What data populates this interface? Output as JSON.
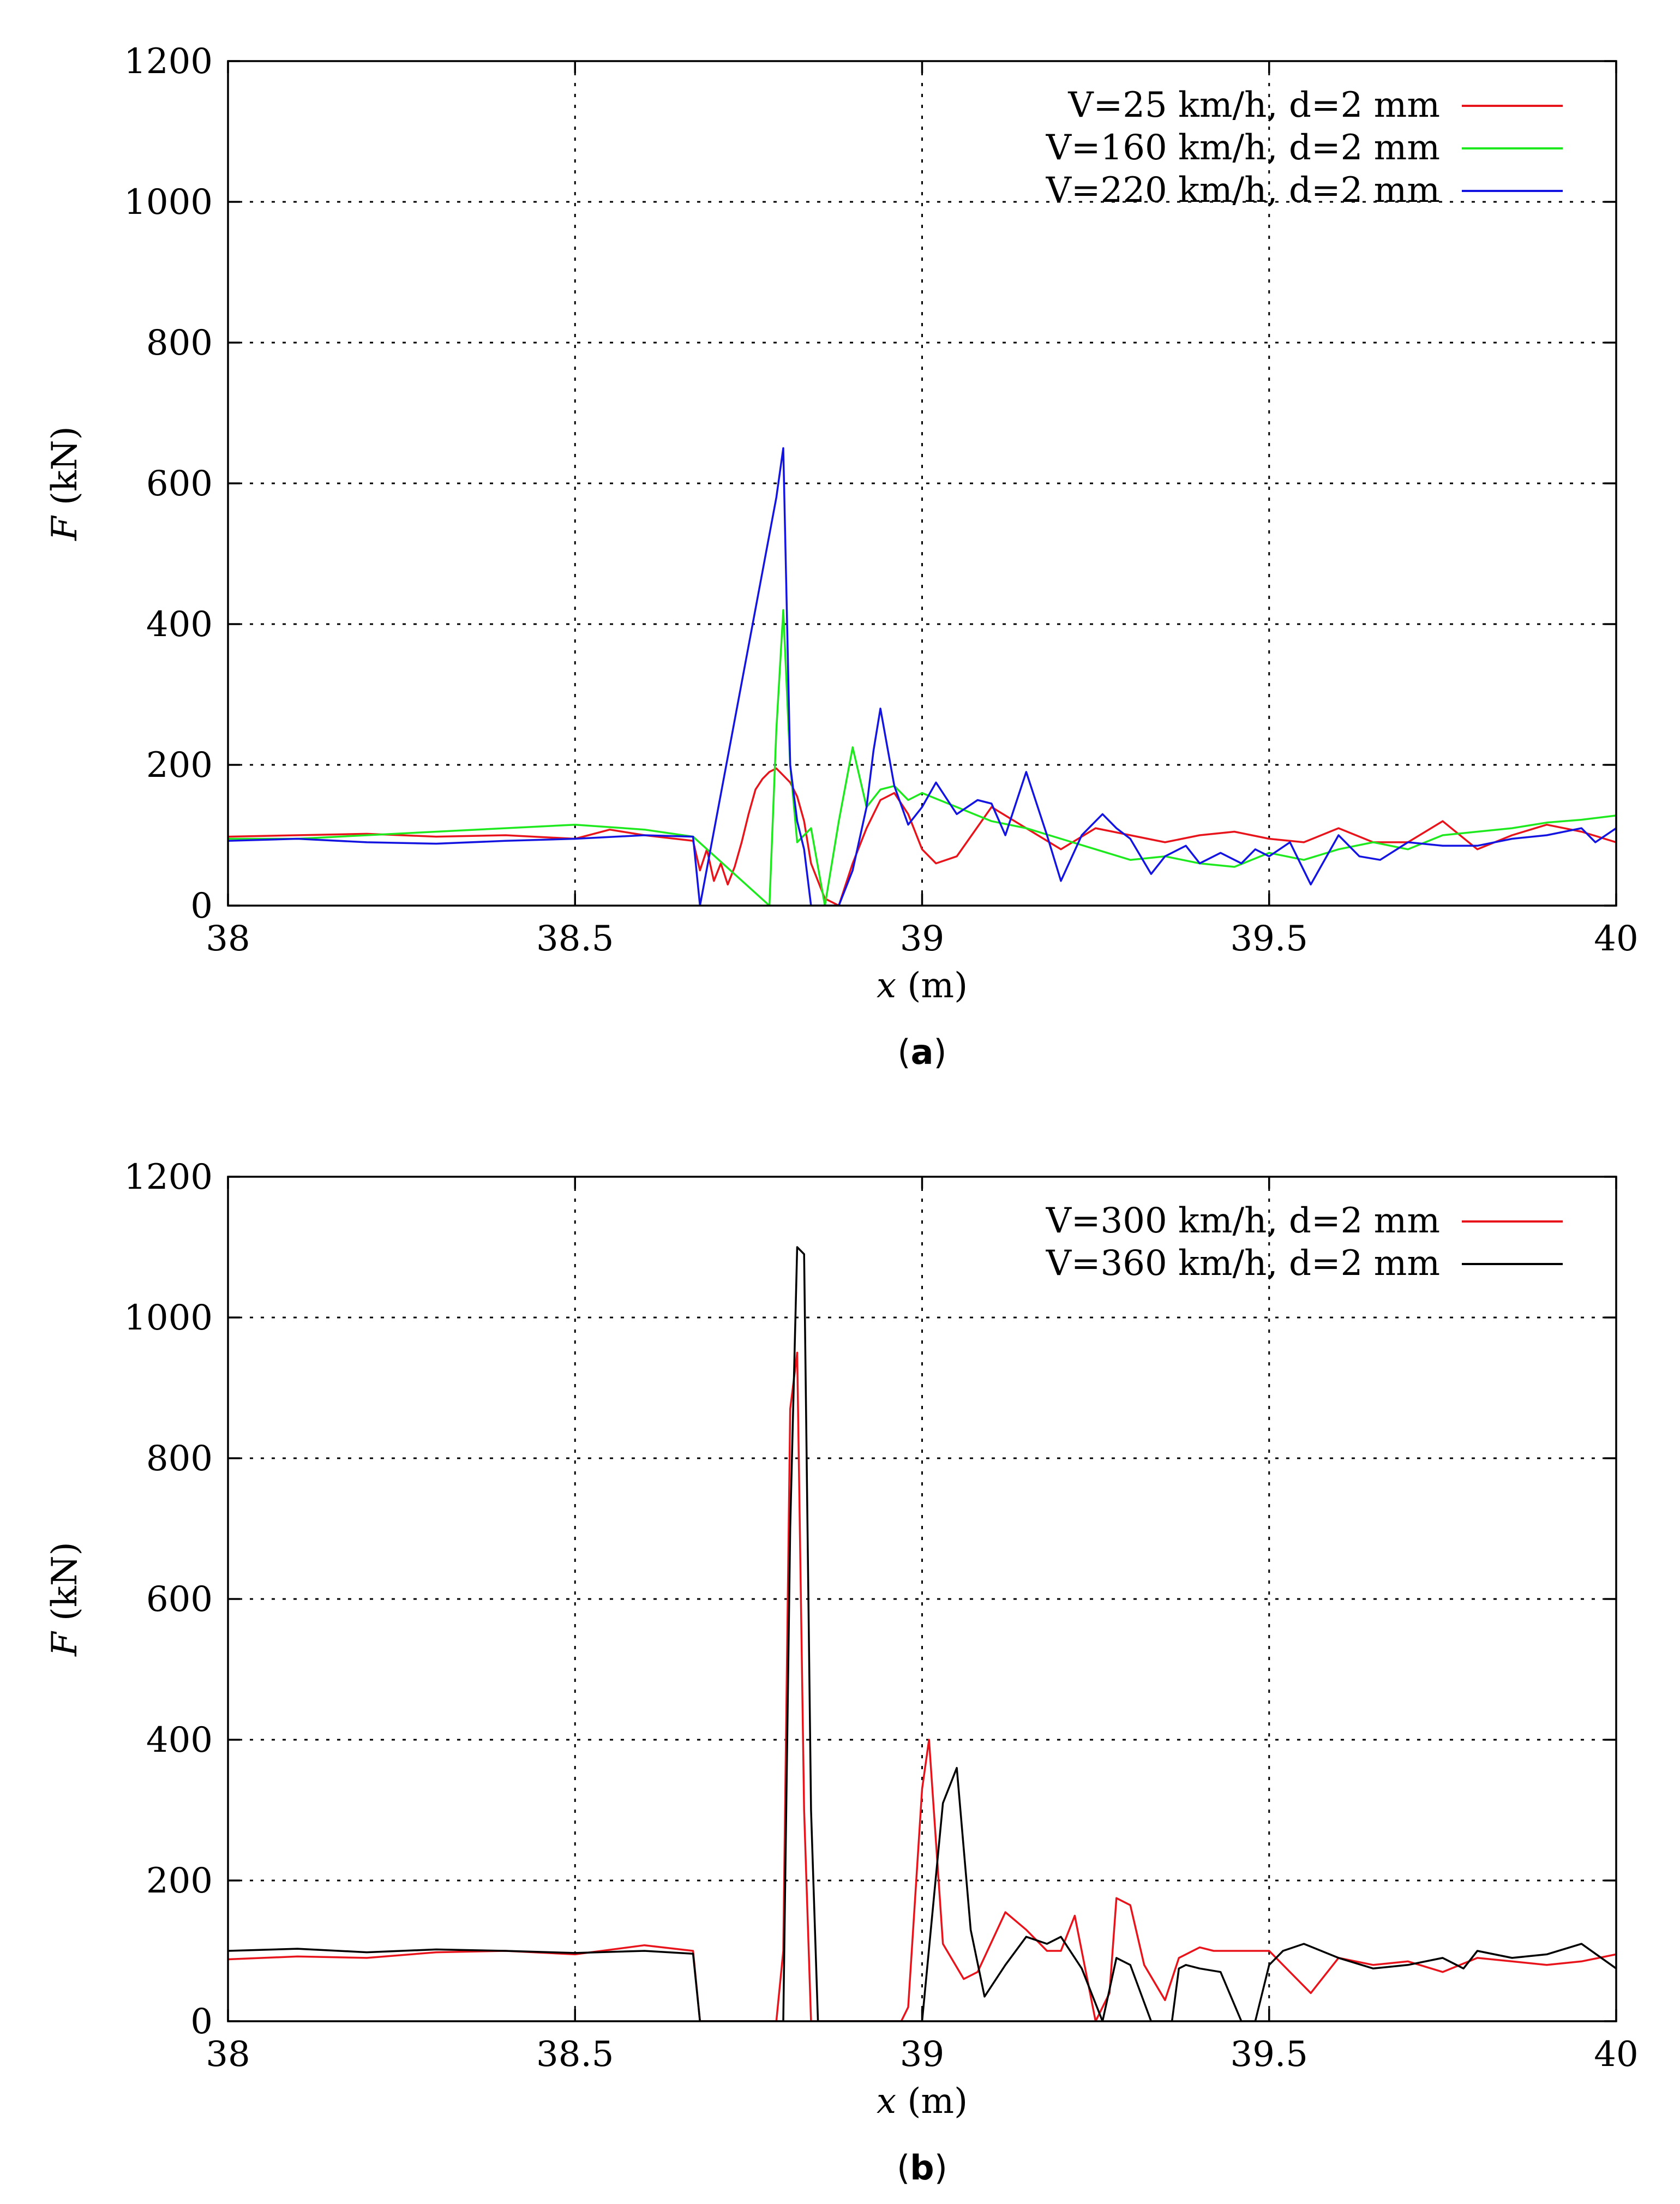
{
  "colors": {
    "red": "#e8141c",
    "green": "#1ee81e",
    "blue": "#1414e0",
    "black": "#000000"
  },
  "chart_data": [
    {
      "type": "line",
      "panel_label": "a",
      "xlabel_var": "x",
      "xlabel_unit": "(m)",
      "ylabel_var": "F",
      "ylabel_unit": "(kN)",
      "xlim": [
        38,
        40
      ],
      "ylim": [
        0,
        1200
      ],
      "xticks": [
        "38",
        "38.5",
        "39",
        "39.5",
        "40"
      ],
      "yticks": [
        "0",
        "200",
        "400",
        "600",
        "800",
        "1000",
        "1200"
      ],
      "grid": true,
      "legend_position": "top-right",
      "series": [
        {
          "name": "V=25 km/h, d=2 mm",
          "color": "#e8141c",
          "x": [
            38.0,
            38.1,
            38.2,
            38.3,
            38.4,
            38.5,
            38.55,
            38.6,
            38.67,
            38.68,
            38.69,
            38.7,
            38.71,
            38.72,
            38.73,
            38.74,
            38.75,
            38.76,
            38.77,
            38.78,
            38.79,
            38.8,
            38.81,
            38.82,
            38.83,
            38.84,
            38.86,
            38.88,
            38.9,
            38.92,
            38.94,
            38.96,
            38.98,
            39.0,
            39.02,
            39.05,
            39.1,
            39.15,
            39.2,
            39.25,
            39.3,
            39.35,
            39.4,
            39.45,
            39.5,
            39.55,
            39.6,
            39.65,
            39.7,
            39.75,
            39.8,
            39.85,
            39.9,
            39.95,
            40.0
          ],
          "y": [
            98,
            100,
            102,
            98,
            100,
            95,
            108,
            100,
            92,
            50,
            80,
            35,
            60,
            30,
            55,
            90,
            130,
            165,
            180,
            190,
            195,
            185,
            175,
            155,
            120,
            60,
            10,
            0,
            60,
            110,
            150,
            160,
            130,
            80,
            60,
            70,
            140,
            110,
            80,
            110,
            100,
            90,
            100,
            105,
            95,
            90,
            110,
            90,
            90,
            120,
            80,
            100,
            115,
            105,
            90
          ]
        },
        {
          "name": "V=160 km/h, d=2 mm",
          "color": "#1ee81e",
          "x": [
            38.0,
            38.1,
            38.2,
            38.3,
            38.4,
            38.5,
            38.6,
            38.67,
            38.78,
            38.79,
            38.8,
            38.81,
            38.82,
            38.84,
            38.86,
            38.88,
            38.9,
            38.92,
            38.94,
            38.96,
            38.98,
            39.0,
            39.05,
            39.1,
            39.15,
            39.2,
            39.25,
            39.3,
            39.35,
            39.4,
            39.45,
            39.5,
            39.55,
            39.6,
            39.65,
            39.7,
            39.75,
            39.8,
            39.85,
            39.9,
            39.95,
            40.0
          ],
          "y": [
            95,
            95,
            100,
            105,
            110,
            115,
            108,
            98,
            0,
            250,
            420,
            200,
            90,
            110,
            0,
            120,
            225,
            140,
            165,
            170,
            150,
            160,
            140,
            120,
            110,
            95,
            80,
            65,
            70,
            60,
            55,
            75,
            65,
            80,
            90,
            80,
            100,
            105,
            110,
            118,
            122,
            128
          ]
        },
        {
          "name": "V=220 km/h, d=2 mm",
          "color": "#1414e0",
          "x": [
            38.0,
            38.1,
            38.2,
            38.3,
            38.4,
            38.5,
            38.6,
            38.67,
            38.68,
            38.79,
            38.8,
            38.81,
            38.82,
            38.83,
            38.84,
            38.85,
            38.88,
            38.9,
            38.92,
            38.93,
            38.94,
            38.96,
            38.98,
            39.0,
            39.02,
            39.05,
            39.08,
            39.1,
            39.12,
            39.15,
            39.18,
            39.2,
            39.23,
            39.26,
            39.28,
            39.3,
            39.33,
            39.35,
            39.38,
            39.4,
            39.43,
            39.46,
            39.48,
            39.5,
            39.53,
            39.56,
            39.6,
            39.63,
            39.66,
            39.7,
            39.75,
            39.8,
            39.85,
            39.9,
            39.95,
            39.97,
            40.0
          ],
          "y": [
            92,
            95,
            90,
            88,
            92,
            95,
            100,
            98,
            0,
            580,
            650,
            200,
            120,
            80,
            0,
            0,
            0,
            50,
            140,
            220,
            280,
            170,
            115,
            140,
            175,
            130,
            150,
            145,
            100,
            190,
            100,
            35,
            100,
            130,
            110,
            95,
            45,
            70,
            85,
            60,
            75,
            60,
            80,
            70,
            90,
            30,
            100,
            70,
            65,
            90,
            85,
            85,
            95,
            100,
            110,
            90,
            110
          ]
        }
      ]
    },
    {
      "type": "line",
      "panel_label": "b",
      "xlabel_var": "x",
      "xlabel_unit": "(m)",
      "ylabel_var": "F",
      "ylabel_unit": "(kN)",
      "xlim": [
        38,
        40
      ],
      "ylim": [
        0,
        1200
      ],
      "xticks": [
        "38",
        "38.5",
        "39",
        "39.5",
        "40"
      ],
      "yticks": [
        "0",
        "200",
        "400",
        "600",
        "800",
        "1000",
        "1200"
      ],
      "grid": true,
      "legend_position": "top-right",
      "series": [
        {
          "name": "V=300 km/h, d=2 mm",
          "color": "#e8141c",
          "x": [
            38.0,
            38.1,
            38.2,
            38.3,
            38.4,
            38.5,
            38.6,
            38.67,
            38.68,
            38.79,
            38.8,
            38.81,
            38.82,
            38.83,
            38.84,
            38.97,
            38.98,
            39.0,
            39.01,
            39.03,
            39.06,
            39.08,
            39.12,
            39.15,
            39.18,
            39.2,
            39.22,
            39.25,
            39.27,
            39.28,
            39.3,
            39.32,
            39.35,
            39.37,
            39.4,
            39.42,
            39.45,
            39.5,
            39.53,
            39.56,
            39.6,
            39.65,
            39.7,
            39.75,
            39.8,
            39.85,
            39.9,
            39.95,
            40.0
          ],
          "y": [
            88,
            92,
            90,
            98,
            100,
            95,
            108,
            100,
            0,
            0,
            100,
            870,
            950,
            300,
            0,
            0,
            20,
            330,
            400,
            110,
            60,
            70,
            155,
            130,
            100,
            100,
            150,
            0,
            40,
            175,
            165,
            80,
            30,
            90,
            105,
            100,
            100,
            100,
            70,
            40,
            90,
            80,
            85,
            70,
            90,
            85,
            80,
            85,
            95
          ]
        },
        {
          "name": "V=360 km/h, d=2 mm",
          "color": "#000000",
          "x": [
            38.0,
            38.1,
            38.2,
            38.3,
            38.4,
            38.5,
            38.6,
            38.67,
            38.68,
            38.8,
            38.81,
            38.82,
            38.83,
            38.84,
            38.85,
            38.99,
            39.0,
            39.03,
            39.05,
            39.07,
            39.09,
            39.12,
            39.15,
            39.18,
            39.2,
            39.23,
            39.26,
            39.28,
            39.3,
            39.33,
            39.34,
            39.36,
            39.37,
            39.38,
            39.4,
            39.43,
            39.46,
            39.48,
            39.5,
            39.52,
            39.55,
            39.6,
            39.65,
            39.7,
            39.75,
            39.78,
            39.8,
            39.85,
            39.9,
            39.95,
            40.0
          ],
          "y": [
            100,
            103,
            98,
            102,
            100,
            97,
            100,
            96,
            0,
            0,
            700,
            1100,
            1090,
            300,
            0,
            0,
            0,
            310,
            360,
            130,
            35,
            80,
            120,
            110,
            120,
            75,
            0,
            90,
            80,
            0,
            0,
            0,
            75,
            80,
            75,
            70,
            0,
            0,
            80,
            100,
            110,
            90,
            75,
            80,
            90,
            75,
            100,
            90,
            95,
            110,
            75
          ]
        }
      ]
    }
  ]
}
